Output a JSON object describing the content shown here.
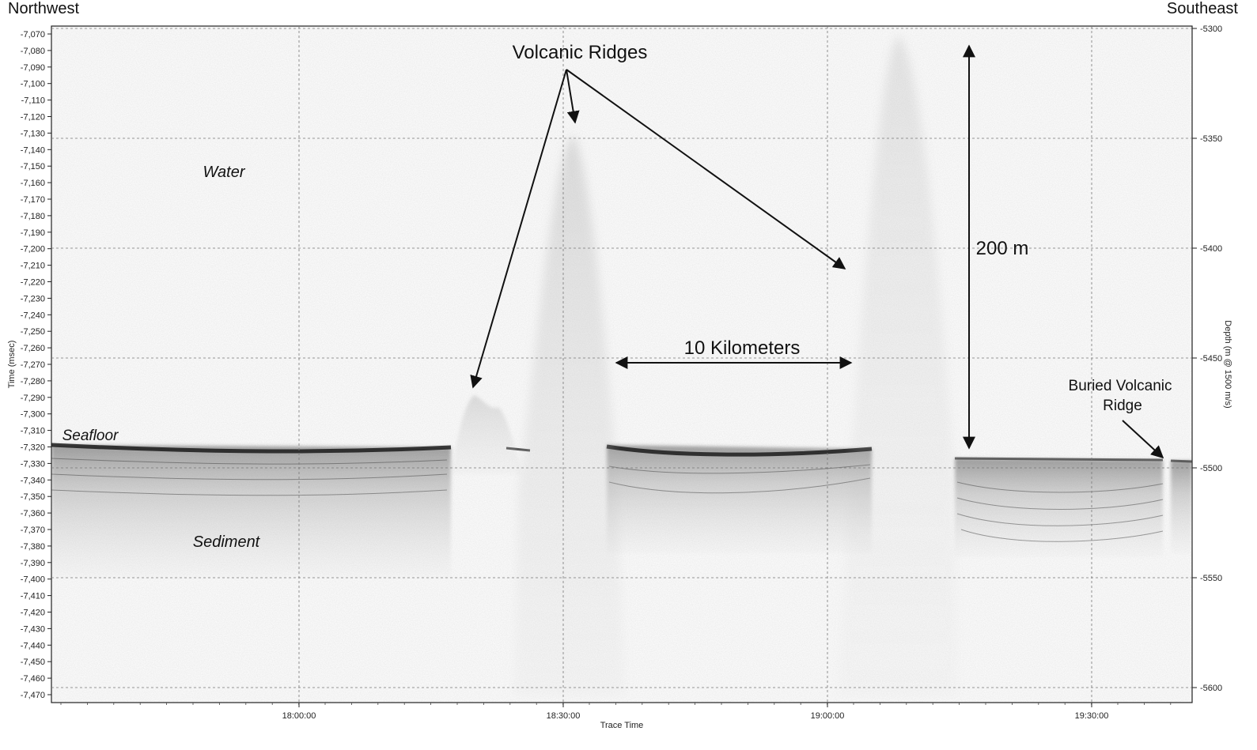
{
  "header": {
    "left_label": "Northwest",
    "right_label": "Southeast"
  },
  "chart_data": {
    "type": "heatmap",
    "title": "",
    "xlabel": "Trace Time",
    "ylabel": "Time (msec)",
    "y2label": "Depth (m @ 1500 m/s)",
    "x_tick_labels": [
      "18:00:00",
      "18:30:00",
      "19:00:00",
      "19:30:00"
    ],
    "y_tick_values": [
      -7070,
      -7080,
      -7090,
      -7100,
      -7110,
      -7120,
      -7130,
      -7140,
      -7150,
      -7160,
      -7170,
      -7180,
      -7190,
      -7200,
      -7210,
      -7220,
      -7230,
      -7240,
      -7250,
      -7260,
      -7270,
      -7280,
      -7290,
      -7300,
      -7310,
      -7320,
      -7330,
      -7340,
      -7350,
      -7360,
      -7370,
      -7380,
      -7390,
      -7400,
      -7410,
      -7420,
      -7430,
      -7440,
      -7450,
      -7460,
      -7470
    ],
    "y_tick_labels": [
      "-7,070",
      "-7,080",
      "-7,090",
      "-7,100",
      "-7,110",
      "-7,120",
      "-7,130",
      "-7,140",
      "-7,150",
      "-7,160",
      "-7,170",
      "-7,180",
      "-7,190",
      "-7,200",
      "-7,210",
      "-7,220",
      "-7,230",
      "-7,240",
      "-7,250",
      "-7,260",
      "-7,270",
      "-7,280",
      "-7,290",
      "-7,300",
      "-7,310",
      "-7,320",
      "-7,330",
      "-7,340",
      "-7,350",
      "-7,360",
      "-7,370",
      "-7,380",
      "-7,390",
      "-7,400",
      "-7,410",
      "-7,420",
      "-7,430",
      "-7,440",
      "-7,450",
      "-7,460",
      "-7,470"
    ],
    "y2_tick_values": [
      -5300,
      -5350,
      -5400,
      -5450,
      -5500,
      -5550,
      -5600
    ],
    "y2_tick_labels": [
      "-5300",
      "-5350",
      "-5400",
      "-5450",
      "-5500",
      "-5550",
      "-5600"
    ],
    "ylim": [
      -7475,
      -7065
    ],
    "grid": true,
    "annotations": {
      "volcanic_ridges": "Volcanic Ridges",
      "water": "Water",
      "seafloor": "Seafloor",
      "sediment": "Sediment",
      "ten_km": "10 Kilometers",
      "two_hundred_m": "200 m",
      "buried_ridge_line1": "Buried Volcanic",
      "buried_ridge_line2": "Ridge"
    }
  }
}
